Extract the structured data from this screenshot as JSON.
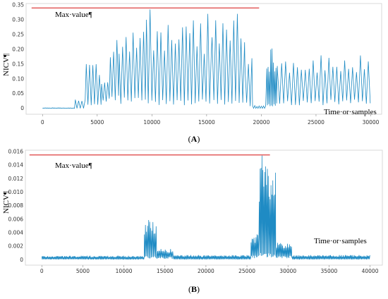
{
  "chart_data": [
    {
      "type": "line",
      "panel_label": "(A)",
      "panel_label_parts": [
        "(",
        "A",
        ")"
      ],
      "ylabel": "NICV¶",
      "xlabel_annotation": "Time·or·samples",
      "max_annotation": "Max·value¶",
      "xlim": [
        -1500,
        31000
      ],
      "ylim": [
        -0.02,
        0.355
      ],
      "x_ticks": [
        0,
        5000,
        10000,
        15000,
        20000,
        25000,
        30000
      ],
      "x_tick_labels": [
        "0",
        "5000",
        "10000",
        "15000",
        "20000",
        "25000",
        "30000"
      ],
      "y_ticks": [
        0,
        0.05,
        0.1,
        0.15,
        0.2,
        0.25,
        0.3,
        0.35
      ],
      "y_tick_labels": [
        "0",
        "0.05",
        "0.10",
        "0.15",
        "0.20",
        "0.25",
        "0.30",
        "0.35"
      ],
      "max_value": 0.34,
      "max_line_x": [
        -1000,
        19800
      ],
      "series_color": "#1f8bc4",
      "max_line_color": "#e05050",
      "segments": [
        {
          "x0": 0,
          "x1": 3000,
          "peak": 0.002,
          "base": 0.0,
          "period": 150
        },
        {
          "x0": 3000,
          "x1": 4000,
          "peak": 0.03,
          "base": 0.0,
          "period": 300
        },
        {
          "x0": 4000,
          "x1": 5400,
          "peak": 0.165,
          "base": 0.02,
          "period": 300
        },
        {
          "x0": 5400,
          "x1": 6200,
          "peak": 0.09,
          "base": 0.04,
          "period": 280
        },
        {
          "x0": 6200,
          "x1": 7000,
          "peak": 0.25,
          "base": 0.05,
          "period": 300
        },
        {
          "x0": 7000,
          "x1": 9500,
          "peak": 0.27,
          "base": 0.04,
          "period": 320
        },
        {
          "x0": 9500,
          "x1": 15500,
          "peak": 0.31,
          "base": 0.03,
          "period": 330
        },
        {
          "x0": 15500,
          "x1": 18500,
          "peak": 0.3,
          "base": 0.03,
          "period": 330
        },
        {
          "x0": 18500,
          "x1": 19200,
          "peak": 0.2,
          "base": 0.02,
          "period": 320
        },
        {
          "x0": 19200,
          "x1": 20500,
          "peak": 0.01,
          "base": 0.0,
          "period": 200
        },
        {
          "x0": 20500,
          "x1": 21500,
          "peak": 0.21,
          "base": 0.02,
          "period": 120
        },
        {
          "x0": 21500,
          "x1": 30000,
          "peak": 0.18,
          "base": 0.03,
          "period": 360
        }
      ],
      "peaks": [
        {
          "x": 9750,
          "y": 0.335
        },
        {
          "x": 11300,
          "y": 0.32
        },
        {
          "x": 15200,
          "y": 0.32
        },
        {
          "x": 16700,
          "y": 0.31
        },
        {
          "x": 17800,
          "y": 0.32
        },
        {
          "x": 20900,
          "y": 0.22
        }
      ]
    },
    {
      "type": "line",
      "panel_label": "(B)",
      "panel_label_parts": [
        "(",
        "B",
        ")"
      ],
      "ylabel": "NICV¶",
      "xlabel_annotation": "Time·or·samples",
      "max_annotation": "Max·value¶",
      "xlim": [
        -2000,
        41500
      ],
      "ylim": [
        -0.0008,
        0.0162
      ],
      "x_ticks": [
        0,
        5000,
        10000,
        15000,
        20000,
        25000,
        30000,
        35000,
        40000
      ],
      "x_tick_labels": [
        "0",
        "5000",
        "10000",
        "15000",
        "20000",
        "25000",
        "30000",
        "35000",
        "40000"
      ],
      "y_ticks": [
        0,
        0.002,
        0.004,
        0.006,
        0.008,
        0.01,
        0.012,
        0.014,
        0.016
      ],
      "y_tick_labels": [
        "0",
        "0.002",
        "0.004",
        "0.006",
        "0.008",
        "0.010",
        "0.012",
        "0.014",
        "0.016"
      ],
      "max_value": 0.0155,
      "max_line_x": [
        -1500,
        27800
      ],
      "series_color": "#1f8bc4",
      "max_line_color": "#e05050",
      "segments": [
        {
          "x0": 0,
          "x1": 12500,
          "peak": 0.0006,
          "base": 0.0001,
          "period": 120
        },
        {
          "x0": 12500,
          "x1": 14000,
          "peak": 0.006,
          "base": 0.0006,
          "period": 130
        },
        {
          "x0": 14000,
          "x1": 16000,
          "peak": 0.0016,
          "base": 0.0004,
          "period": 130
        },
        {
          "x0": 16000,
          "x1": 25500,
          "peak": 0.0007,
          "base": 0.0001,
          "period": 120
        },
        {
          "x0": 25500,
          "x1": 26500,
          "peak": 0.004,
          "base": 0.0006,
          "period": 120
        },
        {
          "x0": 26500,
          "x1": 28500,
          "peak": 0.014,
          "base": 0.001,
          "period": 110
        },
        {
          "x0": 28500,
          "x1": 30500,
          "peak": 0.0025,
          "base": 0.0006,
          "period": 120
        },
        {
          "x0": 30500,
          "x1": 40000,
          "peak": 0.0007,
          "base": 0.0001,
          "period": 120
        }
      ],
      "peaks": [
        {
          "x": 13500,
          "y": 0.0068
        },
        {
          "x": 26800,
          "y": 0.0154
        },
        {
          "x": 27300,
          "y": 0.0138
        }
      ]
    }
  ]
}
